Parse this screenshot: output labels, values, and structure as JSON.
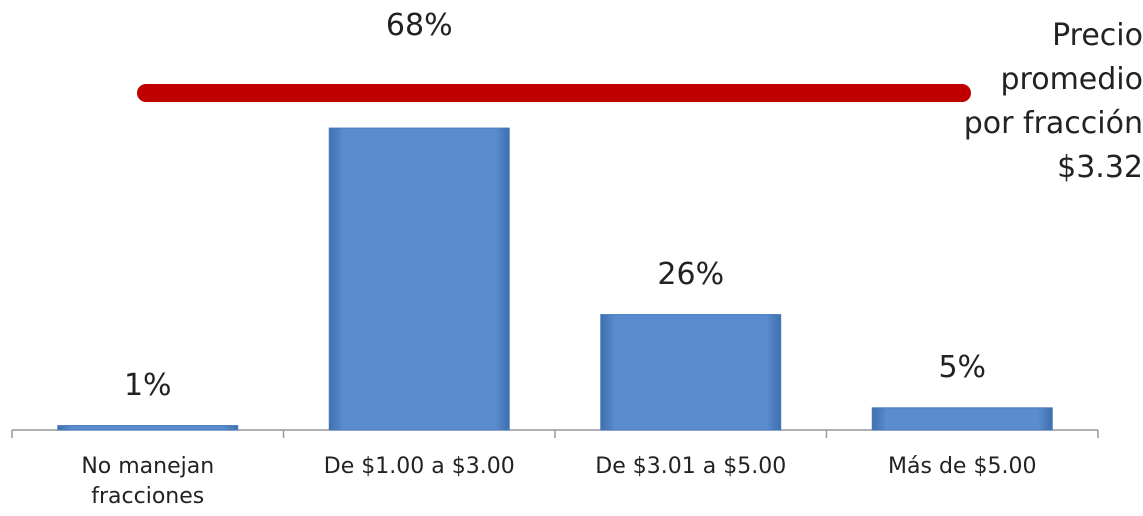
{
  "chart_data": {
    "type": "bar",
    "categories": [
      "No manejan\nfracciones",
      "De $1.00 a $3.00",
      "De $3.01 a $5.00",
      "Más de $5.00"
    ],
    "values": [
      1,
      68,
      26,
      5
    ],
    "value_labels": [
      "1%",
      "68%",
      "26%",
      "5%"
    ],
    "color": "#5a8ccf",
    "annotation": "Precio\npromedio\npor fracción\n$3.32"
  }
}
